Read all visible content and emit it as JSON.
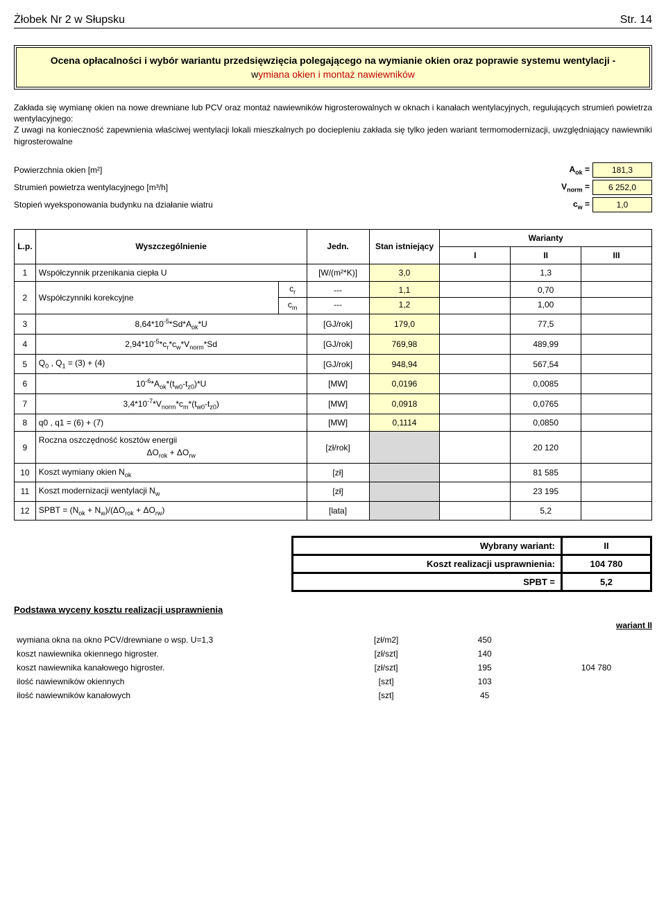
{
  "header": {
    "left": "Żłobek Nr 2 w Słupsku",
    "right": "Str. 14"
  },
  "banner": {
    "title": "Ocena opłacalności i wybór wariantu przedsięwzięcia polegającego na wymianie okien oraz poprawie systemu wentylacji -",
    "sub_pre": "w",
    "sub": "ymiana okien i montaż nawiewników"
  },
  "desc": "Zakłada się wymianę okien na nowe drewniane lub PCV oraz montaż nawiewników higrosterowalnych w oknach i kanałach wentylacyjnych, regulujących strumień powietrza wentylacyjnego:\nZ uwagi na konieczność zapewnienia właściwej wentylacji lokali mieszkalnych po dociepleniu zakłada się tylko jeden wariant termomodernizacji, uwzględniający nawiewniki higrosterowalne",
  "params": [
    {
      "label": "Powierzchnia okien [m²]",
      "sym": "Aₒₖ =",
      "val": "181,3"
    },
    {
      "label": "Strumień powietrza wentylacyjnego  [m³/h]",
      "sym": "Vₙₒᵣₘ =",
      "val": "6 252,0"
    },
    {
      "label": "Stopień wyeksponowania budynku na działanie wiatru",
      "sym": "c_w =",
      "val": "1,0"
    }
  ],
  "table": {
    "head": {
      "lp": "L.p.",
      "desc": "Wyszczególnienie",
      "unit": "Jedn.",
      "stan": "Stan istniejący",
      "war": "Warianty",
      "i": "I",
      "ii": "II",
      "iii": "III"
    },
    "rows": [
      {
        "lp": "1",
        "desc": "Współczynnik przenikania ciepła U",
        "desc_align": "left",
        "unit": "[W/(m²*K)]",
        "stan": "3,0",
        "v1": "",
        "v2": "1,3",
        "v3": ""
      },
      {
        "lp": "2",
        "desc": "Współczynniki korekcyjne",
        "desc_align": "left",
        "sub_right": [
          "cᵣ",
          "cₘ"
        ],
        "unit_split": [
          "---",
          "---"
        ],
        "stan_split": [
          "1,1",
          "1,2"
        ],
        "v1_split": [
          "",
          ""
        ],
        "v2_split": [
          "0,70",
          "1,00"
        ],
        "v3_split": [
          "",
          ""
        ]
      },
      {
        "lp": "3",
        "desc": "8,64*10⁻⁵*Sd*Aₒₖ*U",
        "desc_align": "center",
        "unit": "[GJ/rok]",
        "stan": "179,0",
        "v1": "",
        "v2": "77,5",
        "v3": ""
      },
      {
        "lp": "4",
        "desc": "2,94*10⁻⁵*cᵣ*c_w*Vₙₒᵣₘ*Sd",
        "desc_align": "center",
        "unit": "[GJ/rok]",
        "stan": "769,98",
        "v1": "",
        "v2": "489,99",
        "v3": ""
      },
      {
        "lp": "5",
        "desc": "Q₀ , Q₁ = (3) + (4)",
        "desc_align": "left",
        "unit": "[GJ/rok]",
        "stan": "948,94",
        "v1": "",
        "v2": "567,54",
        "v3": ""
      },
      {
        "lp": "6",
        "desc": "10⁻⁶*Aₒₖ*(t_w0-t_z0)*U",
        "desc_align": "center",
        "unit": "[MW]",
        "stan": "0,0196",
        "v1": "",
        "v2": "0,0085",
        "v3": ""
      },
      {
        "lp": "7",
        "desc": "3,4*10⁻⁷*Vₙₒᵣₘ*cₘ*(t_w0-t_z0)",
        "desc_align": "center",
        "unit": "[MW]",
        "stan": "0,0918",
        "v1": "",
        "v2": "0,0765",
        "v3": ""
      },
      {
        "lp": "8",
        "desc": "q0 , q1 = (6) + (7)",
        "desc_align": "left",
        "unit": "[MW]",
        "stan": "0,1114",
        "v1": "",
        "v2": "0,0850",
        "v3": ""
      },
      {
        "lp": "9",
        "desc": "Roczna oszczędność kosztów energii",
        "desc2": "ΔOᵣₒₖ + ΔOᵣ_w",
        "desc_align": "left",
        "unit": "[zł/rok]",
        "stan": "",
        "stan_grey": true,
        "v1": "",
        "v2": "20 120",
        "v3": ""
      },
      {
        "lp": "10",
        "desc": "Koszt wymiany okien Nₒₖ",
        "desc_align": "left",
        "unit": "[zł]",
        "stan": "",
        "stan_grey": true,
        "v1": "",
        "v2": "81 585",
        "v3": ""
      },
      {
        "lp": "11",
        "desc": "Koszt modernizacji wentylacji N_w",
        "desc_align": "left",
        "unit": "[zł]",
        "stan": "",
        "stan_grey": true,
        "v1": "",
        "v2": "23 195",
        "v3": ""
      },
      {
        "lp": "12",
        "desc": "SPBT = (Nₒₖ + N_w)/(ΔOᵣₒₖ + ΔOᵣ_w)",
        "desc_align": "left",
        "unit": "[lata]",
        "stan": "",
        "stan_grey": true,
        "v1": "",
        "v2": "5,2",
        "v3": ""
      }
    ]
  },
  "result": {
    "r1": {
      "lab": "Wybrany wariant:",
      "val": "II"
    },
    "r2": {
      "lab": "Koszt realizacji usprawnienia:",
      "val": "104 780"
    },
    "r3": {
      "lab": "SPBT =",
      "val": "5,2"
    }
  },
  "basis": {
    "title": "Podstawa wyceny kosztu realizacji usprawnienia",
    "variant": "wariant II",
    "rows": [
      {
        "desc": "wymiana okna na okno PCV/drewniane o wsp. U=1,3",
        "unit": "[zł/m2]",
        "val": "450",
        "total": ""
      },
      {
        "desc": "koszt nawiewnika okiennego higroster.",
        "unit": "[zł/szt]",
        "val": "140",
        "total": ""
      },
      {
        "desc": "koszt nawiewnika kanałowego higroster.",
        "unit": "[zł/szt]",
        "val": "195",
        "total": "104 780"
      },
      {
        "desc": "ilość nawiewników okiennych",
        "unit": "[szt]",
        "val": "103",
        "total": ""
      },
      {
        "desc": "ilość nawiewników kanałowych",
        "unit": "[szt]",
        "val": "45",
        "total": ""
      }
    ]
  },
  "colors": {
    "yellow": "#ffffcc",
    "grey": "#d9d9d9",
    "red": "#c00000",
    "border": "#000000",
    "bg": "#ffffff"
  }
}
